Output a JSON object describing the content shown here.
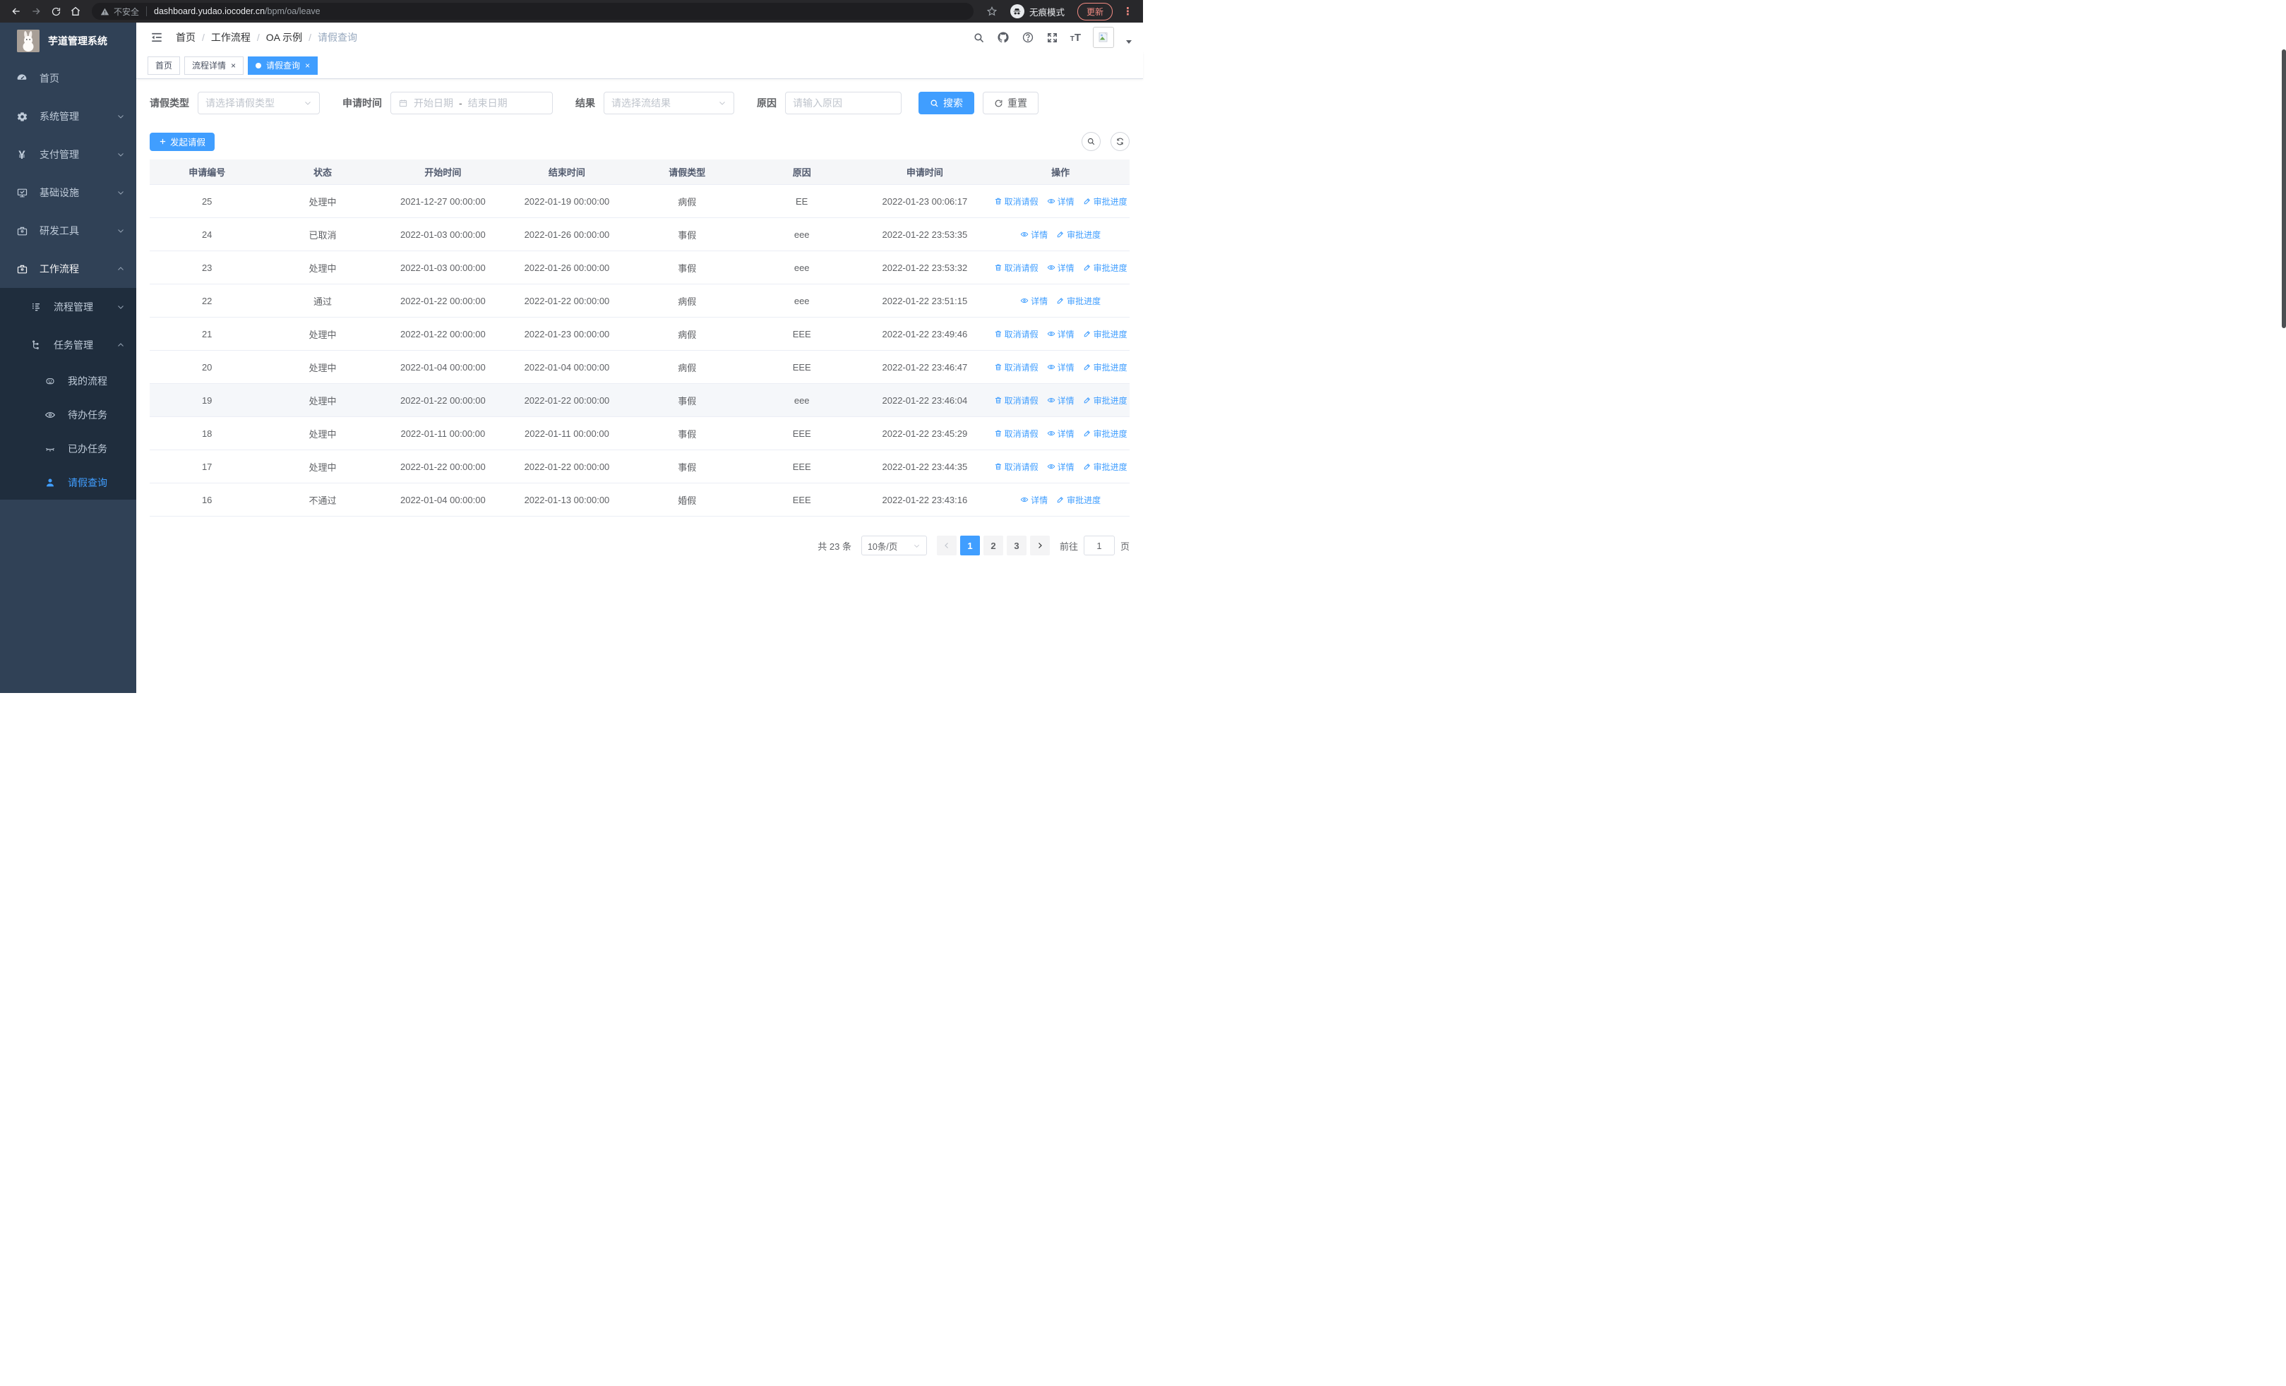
{
  "browser": {
    "security_label": "不安全",
    "url_host": "dashboard.yudao.iocoder.cn",
    "url_path": "/bpm/oa/leave",
    "incognito_label": "无痕模式",
    "update_label": "更新"
  },
  "sidebar": {
    "app_title": "芋道管理系统",
    "menu": [
      {
        "label": "首页"
      },
      {
        "label": "系统管理"
      },
      {
        "label": "支付管理"
      },
      {
        "label": "基础设施"
      },
      {
        "label": "研发工具"
      },
      {
        "label": "工作流程"
      },
      {
        "label": "流程管理"
      },
      {
        "label": "任务管理"
      },
      {
        "label": "我的流程"
      },
      {
        "label": "待办任务"
      },
      {
        "label": "已办任务"
      },
      {
        "label": "请假查询"
      }
    ]
  },
  "header": {
    "breadcrumb": [
      "首页",
      "工作流程",
      "OA 示例",
      "请假查询"
    ]
  },
  "tabs": [
    {
      "label": "首页"
    },
    {
      "label": "流程详情"
    },
    {
      "label": "请假查询"
    }
  ],
  "filters": {
    "leave_type_label": "请假类型",
    "leave_type_placeholder": "请选择请假类型",
    "apply_time_label": "申请时间",
    "start_date_placeholder": "开始日期",
    "date_separator": "-",
    "end_date_placeholder": "结束日期",
    "result_label": "结果",
    "result_placeholder": "请选择流结果",
    "reason_label": "原因",
    "reason_placeholder": "请输入原因",
    "search_label": "搜索",
    "reset_label": "重置"
  },
  "toolbar": {
    "create_label": "发起请假"
  },
  "table": {
    "columns": [
      "申请编号",
      "状态",
      "开始时间",
      "结束时间",
      "请假类型",
      "原因",
      "申请时间",
      "操作"
    ],
    "action_labels": {
      "cancel": "取消请假",
      "detail": "详情",
      "progress": "审批进度"
    },
    "highlighted_row": 6,
    "rows": [
      {
        "id": "25",
        "status": "处理中",
        "start": "2021-12-27 00:00:00",
        "end": "2022-01-19 00:00:00",
        "type": "病假",
        "reason": "EE",
        "applied": "2022-01-23 00:06:17",
        "actions": [
          "cancel",
          "detail",
          "progress"
        ]
      },
      {
        "id": "24",
        "status": "已取消",
        "start": "2022-01-03 00:00:00",
        "end": "2022-01-26 00:00:00",
        "type": "事假",
        "reason": "eee",
        "applied": "2022-01-22 23:53:35",
        "actions": [
          "detail",
          "progress"
        ]
      },
      {
        "id": "23",
        "status": "处理中",
        "start": "2022-01-03 00:00:00",
        "end": "2022-01-26 00:00:00",
        "type": "事假",
        "reason": "eee",
        "applied": "2022-01-22 23:53:32",
        "actions": [
          "cancel",
          "detail",
          "progress"
        ]
      },
      {
        "id": "22",
        "status": "通过",
        "start": "2022-01-22 00:00:00",
        "end": "2022-01-22 00:00:00",
        "type": "病假",
        "reason": "eee",
        "applied": "2022-01-22 23:51:15",
        "actions": [
          "detail",
          "progress"
        ]
      },
      {
        "id": "21",
        "status": "处理中",
        "start": "2022-01-22 00:00:00",
        "end": "2022-01-23 00:00:00",
        "type": "病假",
        "reason": "EEE",
        "applied": "2022-01-22 23:49:46",
        "actions": [
          "cancel",
          "detail",
          "progress"
        ]
      },
      {
        "id": "20",
        "status": "处理中",
        "start": "2022-01-04 00:00:00",
        "end": "2022-01-04 00:00:00",
        "type": "病假",
        "reason": "EEE",
        "applied": "2022-01-22 23:46:47",
        "actions": [
          "cancel",
          "detail",
          "progress"
        ]
      },
      {
        "id": "19",
        "status": "处理中",
        "start": "2022-01-22 00:00:00",
        "end": "2022-01-22 00:00:00",
        "type": "事假",
        "reason": "eee",
        "applied": "2022-01-22 23:46:04",
        "actions": [
          "cancel",
          "detail",
          "progress"
        ]
      },
      {
        "id": "18",
        "status": "处理中",
        "start": "2022-01-11 00:00:00",
        "end": "2022-01-11 00:00:00",
        "type": "事假",
        "reason": "EEE",
        "applied": "2022-01-22 23:45:29",
        "actions": [
          "cancel",
          "detail",
          "progress"
        ]
      },
      {
        "id": "17",
        "status": "处理中",
        "start": "2022-01-22 00:00:00",
        "end": "2022-01-22 00:00:00",
        "type": "事假",
        "reason": "EEE",
        "applied": "2022-01-22 23:44:35",
        "actions": [
          "cancel",
          "detail",
          "progress"
        ]
      },
      {
        "id": "16",
        "status": "不通过",
        "start": "2022-01-04 00:00:00",
        "end": "2022-01-13 00:00:00",
        "type": "婚假",
        "reason": "EEE",
        "applied": "2022-01-22 23:43:16",
        "actions": [
          "detail",
          "progress"
        ]
      }
    ]
  },
  "pagination": {
    "total_label": "共 23 条",
    "page_size_label": "10条/页",
    "pages": [
      "1",
      "2",
      "3"
    ],
    "active_page": "1",
    "goto_label": "前往",
    "goto_value": "1",
    "page_unit": "页"
  },
  "colors": {
    "primary": "#409eff",
    "sidebar_bg": "#304156",
    "submenu_bg": "#1f2d3d",
    "sidebar_text": "#bfcbd9",
    "browser_update_accent": "#f28b82",
    "table_header_bg": "#f5f6f8",
    "row_hover_bg": "#f5f7fa"
  }
}
